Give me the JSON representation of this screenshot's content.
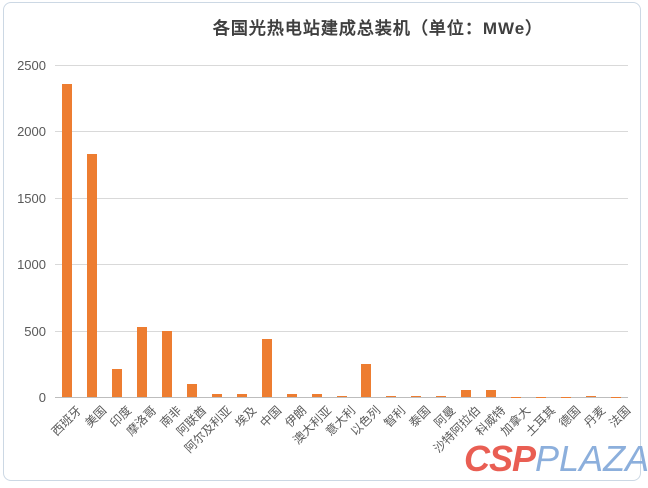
{
  "frame": {
    "border_color": "#ccd8e4"
  },
  "chart_data": {
    "type": "bar",
    "title": "各国光热电站建成总装机（单位：MWe）",
    "categories": [
      "西班牙",
      "美国",
      "印度",
      "摩洛哥",
      "南非",
      "阿联酋",
      "阿尔及利亚",
      "埃及",
      "中国",
      "伊朗",
      "澳大利亚",
      "意大利",
      "以色列",
      "智利",
      "泰国",
      "阿曼",
      "沙特阿拉伯",
      "科威特",
      "加拿大",
      "土耳其",
      "德国",
      "丹麦",
      "法国"
    ],
    "values": [
      2360,
      1830,
      210,
      530,
      500,
      100,
      25,
      20,
      440,
      20,
      20,
      8,
      245,
      8,
      8,
      7,
      50,
      50,
      2,
      2,
      2,
      10,
      1
    ],
    "unit": "MWe",
    "ylim": [
      0,
      2500
    ],
    "yticks": [
      0,
      500,
      1000,
      1500,
      2000,
      2500
    ],
    "grid": true,
    "legend": "none",
    "bar_color": "#ED7D31",
    "gridline_color": "#d9d9d9",
    "axis_color": "#bdbdbd",
    "tick_label_color": "#595959",
    "title_color": "#3f3f3f"
  },
  "watermark": {
    "csp": "CSP",
    "plaza": "PLAZA",
    "csp_color": "#e8564a",
    "plaza_color": "#86abdb"
  }
}
